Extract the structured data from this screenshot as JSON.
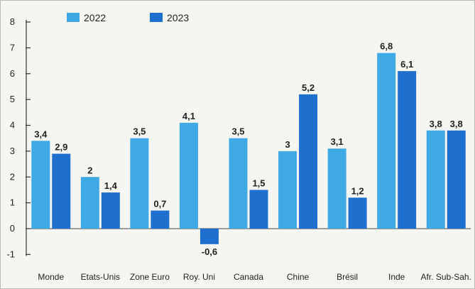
{
  "chart_data": {
    "type": "bar",
    "categories": [
      "Monde",
      "Etats-Unis",
      "Zone Euro",
      "Roy. Uni",
      "Canada",
      "Chine",
      "Brésil",
      "Inde",
      "Afr. Sub-Sah."
    ],
    "series": [
      {
        "name": "2022",
        "values": [
          3.4,
          2,
          3.5,
          4.1,
          3.5,
          3,
          3.1,
          6.8,
          3.8
        ],
        "labels": [
          "3,4",
          "2",
          "3,5",
          "4,1",
          "3,5",
          "3",
          "3,1",
          "6,8",
          "3,8"
        ],
        "color": "#3fa9e6"
      },
      {
        "name": "2023",
        "values": [
          2.9,
          1.4,
          0.7,
          -0.6,
          1.5,
          5.2,
          1.2,
          6.1,
          3.8
        ],
        "labels": [
          "2,9",
          "1,4",
          "0,7",
          "-0,6",
          "1,5",
          "5,2",
          "1,2",
          "6,1",
          "3,8"
        ],
        "color": "#1f6fce"
      }
    ],
    "yticks": [
      "-1",
      "0",
      "1",
      "2",
      "3",
      "4",
      "5",
      "6",
      "7",
      "8"
    ],
    "ylim": [
      -1,
      8
    ],
    "grid": false,
    "legend_position": "top-left"
  }
}
